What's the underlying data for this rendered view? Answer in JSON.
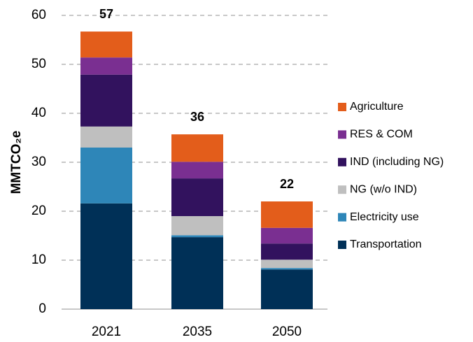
{
  "chart_data": {
    "type": "stacked_bar",
    "y_label": "MMTCO₂e",
    "categories": [
      "2021",
      "2035",
      "2050"
    ],
    "series": [
      {
        "name": "Transportation",
        "color": "#003057",
        "values": [
          21.6,
          14.7,
          8.1
        ]
      },
      {
        "name": "Electricity use",
        "color": "#2e86b8",
        "values": [
          11.4,
          0.4,
          0.3
        ]
      },
      {
        "name": "NG (w/o IND)",
        "color": "#bfbfbf",
        "values": [
          4.3,
          3.9,
          1.7
        ]
      },
      {
        "name": "IND (including NG)",
        "color": "#32125e",
        "values": [
          10.6,
          7.7,
          3.3
        ]
      },
      {
        "name": "RES & COM",
        "color": "#7a2f91",
        "values": [
          3.5,
          3.4,
          3.2
        ]
      },
      {
        "name": "Agriculture",
        "color": "#e35d1b",
        "values": [
          5.3,
          5.6,
          5.4
        ]
      }
    ],
    "totals": [
      57,
      36,
      22
    ],
    "ylim": [
      0,
      60
    ],
    "yticks": [
      0,
      10,
      20,
      30,
      40,
      50,
      60
    ],
    "grid": true
  }
}
